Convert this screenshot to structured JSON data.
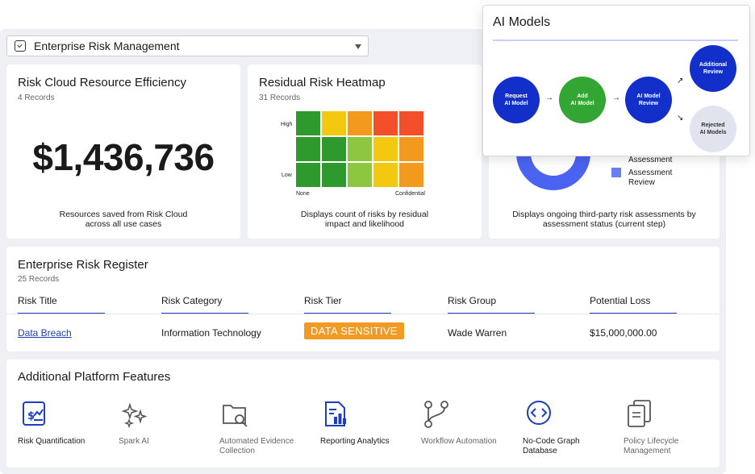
{
  "selector": {
    "label": "Enterprise Risk Management"
  },
  "efficiency": {
    "title": "Risk Cloud Resource Efficiency",
    "records": "4 Records",
    "value": "$1,436,736",
    "desc_line1": "Resources saved from Risk Cloud",
    "desc_line2": "across all use cases"
  },
  "heatmap": {
    "title": "Residual Risk Heatmap",
    "records": "31 Records",
    "y_high": "High",
    "y_low": "Low",
    "x_left": "None",
    "x_right": "Confidential",
    "desc_line1": "Displays count of risks by residual",
    "desc_line2": "impact and likelihood",
    "colors": [
      [
        "#2e9a2e",
        "#f2c811",
        "#f39a1e",
        "#f24f2a",
        "#f24f2a"
      ],
      [
        "#2e9a2e",
        "#2e9a2e",
        "#8dc63f",
        "#f2c811",
        "#f39a1e"
      ],
      [
        "#2e9a2e",
        "#2e9a2e",
        "#8dc63f",
        "#f2c811",
        "#f39a1e"
      ]
    ]
  },
  "assessments": {
    "legend_1": "Assessment",
    "legend_2a": "Assessment",
    "legend_2b": "Review",
    "desc_line1": "Displays ongoing third-party risk assessments by",
    "desc_line2": "assessment status (current step)",
    "donut_color": "#4a63f0"
  },
  "register": {
    "title": "Enterprise Risk Register",
    "records": "25 Records",
    "columns": [
      "Risk Title",
      "Risk Category",
      "Risk Tier",
      "Risk Group",
      "Potential Loss"
    ],
    "row": {
      "title": "Data Breach",
      "category": "Information Technology",
      "tier": "DATA SENSITIVE",
      "group": "Wade Warren",
      "loss": "$15,000,000.00"
    }
  },
  "features": {
    "title": "Additional Platform Features",
    "items": [
      {
        "line1": "Risk Quantification",
        "line2": "",
        "icon": "dollar-chart-icon",
        "muted": false
      },
      {
        "line1": "Spark AI",
        "line2": "",
        "icon": "sparkle-icon",
        "muted": true
      },
      {
        "line1": "Automated Evidence",
        "line2": "Collection",
        "icon": "folder-search-icon",
        "muted": true
      },
      {
        "line1": "Reporting Analytics",
        "line2": "",
        "icon": "report-chart-icon",
        "muted": false
      },
      {
        "line1": "Workflow Automation",
        "line2": "",
        "icon": "workflow-icon",
        "muted": true
      },
      {
        "line1": "No-Code Graph",
        "line2": "Database",
        "icon": "code-icon",
        "muted": false
      },
      {
        "line1": "Policy Lifecycle",
        "line2": "Management",
        "icon": "documents-icon",
        "muted": true
      }
    ]
  },
  "ai_models": {
    "title": "AI Models",
    "nodes": {
      "request": [
        "Request",
        "AI Model"
      ],
      "add": [
        "Add",
        "AI Model"
      ],
      "review": [
        "AI Model",
        "Review"
      ],
      "additional": [
        "Additional",
        "Review"
      ],
      "rejected": [
        "Rejected",
        "AI Models"
      ]
    },
    "arrow": "→",
    "arrow_up": "↗",
    "arrow_down": "↘"
  }
}
